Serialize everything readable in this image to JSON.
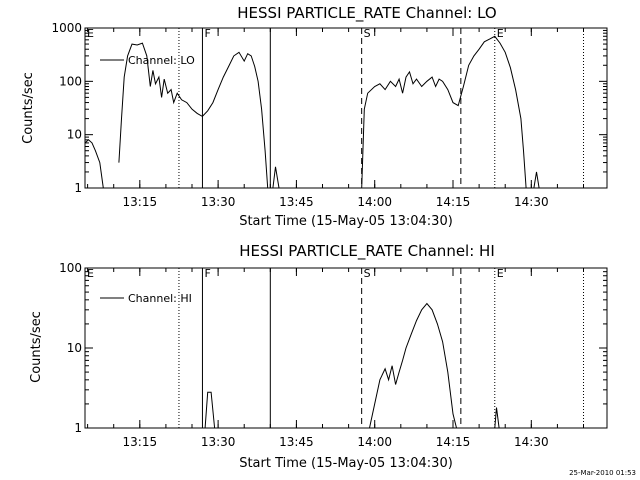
{
  "footer_timestamp": "25-Mar-2010 01:53",
  "chart_data": [
    {
      "type": "line",
      "title": "HESSI PARTICLE_RATE Channel: LO",
      "xlabel": "Start Time (15-May-05 13:04:30)",
      "ylabel": "Counts/sec",
      "yscale": "log",
      "ylim": [
        1,
        1000
      ],
      "xlim_minutes": [
        "13:04:30",
        "14:44:30"
      ],
      "x_ticks": [
        "13:15",
        "13:30",
        "13:45",
        "14:00",
        "14:15",
        "14:30"
      ],
      "y_ticks": [
        "1",
        "10",
        "100",
        "1000"
      ],
      "legend": "Channel: LO",
      "markers": [
        {
          "label": "E",
          "time": "13:04:30",
          "style": "dotted"
        },
        {
          "label": "",
          "time": "13:22:30",
          "style": "dotted"
        },
        {
          "label": "F",
          "time": "13:27:00",
          "style": "solid"
        },
        {
          "label": "",
          "time": "13:40:00",
          "style": "solid"
        },
        {
          "label": "S",
          "time": "13:57:30",
          "style": "dashed"
        },
        {
          "label": "",
          "time": "14:16:30",
          "style": "dashed"
        },
        {
          "label": "E",
          "time": "14:23:00",
          "style": "dotted"
        },
        {
          "label": "",
          "time": "14:40:00",
          "style": "dotted"
        }
      ],
      "series": [
        {
          "name": "Channel: LO",
          "segments": [
            [
              [
                "13:04:30",
                7
              ],
              [
                "13:05:10",
                8
              ],
              [
                "13:05:50",
                7
              ],
              [
                "13:06:30",
                5
              ],
              [
                "13:07:20",
                3
              ],
              [
                "13:08:00",
                1
              ]
            ],
            [
              [
                "13:11:00",
                3
              ],
              [
                "13:11:30",
                20
              ],
              [
                "13:12:00",
                120
              ],
              [
                "13:12:40",
                300
              ],
              [
                "13:13:30",
                500
              ],
              [
                "13:14:30",
                480
              ],
              [
                "13:15:30",
                520
              ],
              [
                "13:16:20",
                300
              ],
              [
                "13:17:00",
                80
              ],
              [
                "13:17:30",
                160
              ],
              [
                "13:18:00",
                90
              ],
              [
                "13:18:40",
                120
              ],
              [
                "13:19:10",
                50
              ],
              [
                "13:19:40",
                110
              ],
              [
                "13:20:20",
                60
              ],
              [
                "13:21:00",
                70
              ],
              [
                "13:21:30",
                40
              ],
              [
                "13:22:10",
                60
              ],
              [
                "13:23:00",
                45
              ],
              [
                "13:24:00",
                40
              ],
              [
                "13:25:00",
                30
              ],
              [
                "13:26:00",
                25
              ],
              [
                "13:27:00",
                22
              ],
              [
                "13:28:00",
                28
              ],
              [
                "13:29:00",
                40
              ],
              [
                "13:30:00",
                70
              ],
              [
                "13:31:00",
                120
              ],
              [
                "13:32:00",
                190
              ],
              [
                "13:33:00",
                300
              ],
              [
                "13:34:00",
                350
              ],
              [
                "13:35:00",
                240
              ],
              [
                "13:35:40",
                330
              ],
              [
                "13:36:20",
                300
              ],
              [
                "13:37:00",
                190
              ],
              [
                "13:37:40",
                100
              ],
              [
                "13:38:20",
                30
              ],
              [
                "13:39:00",
                5
              ],
              [
                "13:39:30",
                1
              ]
            ],
            [
              [
                "13:40:30",
                1
              ],
              [
                "13:41:00",
                2.5
              ],
              [
                "13:41:40",
                1
              ]
            ],
            [
              [
                "13:57:30",
                1
              ],
              [
                "13:58:00",
                30
              ],
              [
                "13:58:40",
                60
              ],
              [
                "14:00:00",
                80
              ],
              [
                "14:01:00",
                90
              ],
              [
                "14:02:00",
                70
              ],
              [
                "14:03:00",
                100
              ],
              [
                "14:04:00",
                80
              ],
              [
                "14:04:40",
                110
              ],
              [
                "14:05:20",
                60
              ],
              [
                "14:06:00",
                120
              ],
              [
                "14:06:40",
                150
              ],
              [
                "14:07:20",
                90
              ],
              [
                "14:08:00",
                110
              ],
              [
                "14:09:00",
                80
              ],
              [
                "14:10:00",
                100
              ],
              [
                "14:11:00",
                120
              ],
              [
                "14:11:40",
                80
              ],
              [
                "14:12:20",
                110
              ],
              [
                "14:13:00",
                100
              ],
              [
                "14:14:00",
                70
              ],
              [
                "14:15:00",
                40
              ],
              [
                "14:16:00",
                35
              ],
              [
                "14:17:00",
                80
              ],
              [
                "14:18:00",
                200
              ],
              [
                "14:19:00",
                300
              ],
              [
                "14:20:00",
                400
              ],
              [
                "14:21:00",
                550
              ],
              [
                "14:22:00",
                620
              ],
              [
                "14:23:00",
                700
              ],
              [
                "14:24:00",
                520
              ],
              [
                "14:25:00",
                350
              ],
              [
                "14:26:00",
                180
              ],
              [
                "14:27:00",
                70
              ],
              [
                "14:28:00",
                20
              ],
              [
                "14:28:30",
                5
              ],
              [
                "14:29:00",
                1
              ]
            ],
            [
              [
                "14:30:30",
                1
              ],
              [
                "14:31:00",
                2
              ],
              [
                "14:31:30",
                1
              ]
            ]
          ]
        }
      ]
    },
    {
      "type": "line",
      "title": "HESSI PARTICLE_RATE Channel: HI",
      "xlabel": "Start Time (15-May-05 13:04:30)",
      "ylabel": "Counts/sec",
      "yscale": "log",
      "ylim": [
        1,
        100
      ],
      "xlim_minutes": [
        "13:04:30",
        "14:44:30"
      ],
      "x_ticks": [
        "13:15",
        "13:30",
        "13:45",
        "14:00",
        "14:15",
        "14:30"
      ],
      "y_ticks": [
        "1",
        "10",
        "100"
      ],
      "legend": "Channel: HI",
      "markers": [
        {
          "label": "E",
          "time": "13:04:30",
          "style": "dotted"
        },
        {
          "label": "",
          "time": "13:22:30",
          "style": "dotted"
        },
        {
          "label": "F",
          "time": "13:27:00",
          "style": "solid"
        },
        {
          "label": "",
          "time": "13:40:00",
          "style": "solid"
        },
        {
          "label": "S",
          "time": "13:57:30",
          "style": "dashed"
        },
        {
          "label": "",
          "time": "14:16:30",
          "style": "dashed"
        },
        {
          "label": "E",
          "time": "14:23:00",
          "style": "dotted"
        },
        {
          "label": "",
          "time": "14:40:00",
          "style": "dotted"
        }
      ],
      "series": [
        {
          "name": "Channel: HI",
          "segments": [
            [
              [
                "13:27:30",
                1
              ],
              [
                "13:28:00",
                2.8
              ],
              [
                "13:28:40",
                2.8
              ],
              [
                "13:29:20",
                1
              ]
            ],
            [
              [
                "13:59:00",
                1
              ],
              [
                "14:00:00",
                2
              ],
              [
                "14:01:00",
                4
              ],
              [
                "14:02:00",
                5.5
              ],
              [
                "14:02:40",
                4
              ],
              [
                "14:03:20",
                6
              ],
              [
                "14:04:00",
                3.5
              ],
              [
                "14:04:40",
                5
              ],
              [
                "14:05:20",
                7
              ],
              [
                "14:06:00",
                10
              ],
              [
                "14:07:00",
                15
              ],
              [
                "14:08:00",
                22
              ],
              [
                "14:09:00",
                30
              ],
              [
                "14:10:00",
                36
              ],
              [
                "14:11:00",
                30
              ],
              [
                "14:12:00",
                20
              ],
              [
                "14:13:00",
                12
              ],
              [
                "14:14:00",
                5
              ],
              [
                "14:15:00",
                1.5
              ],
              [
                "14:15:40",
                1
              ]
            ],
            [
              [
                "14:23:00",
                1
              ],
              [
                "14:23:20",
                1.8
              ],
              [
                "14:23:50",
                1
              ]
            ]
          ]
        }
      ]
    }
  ]
}
